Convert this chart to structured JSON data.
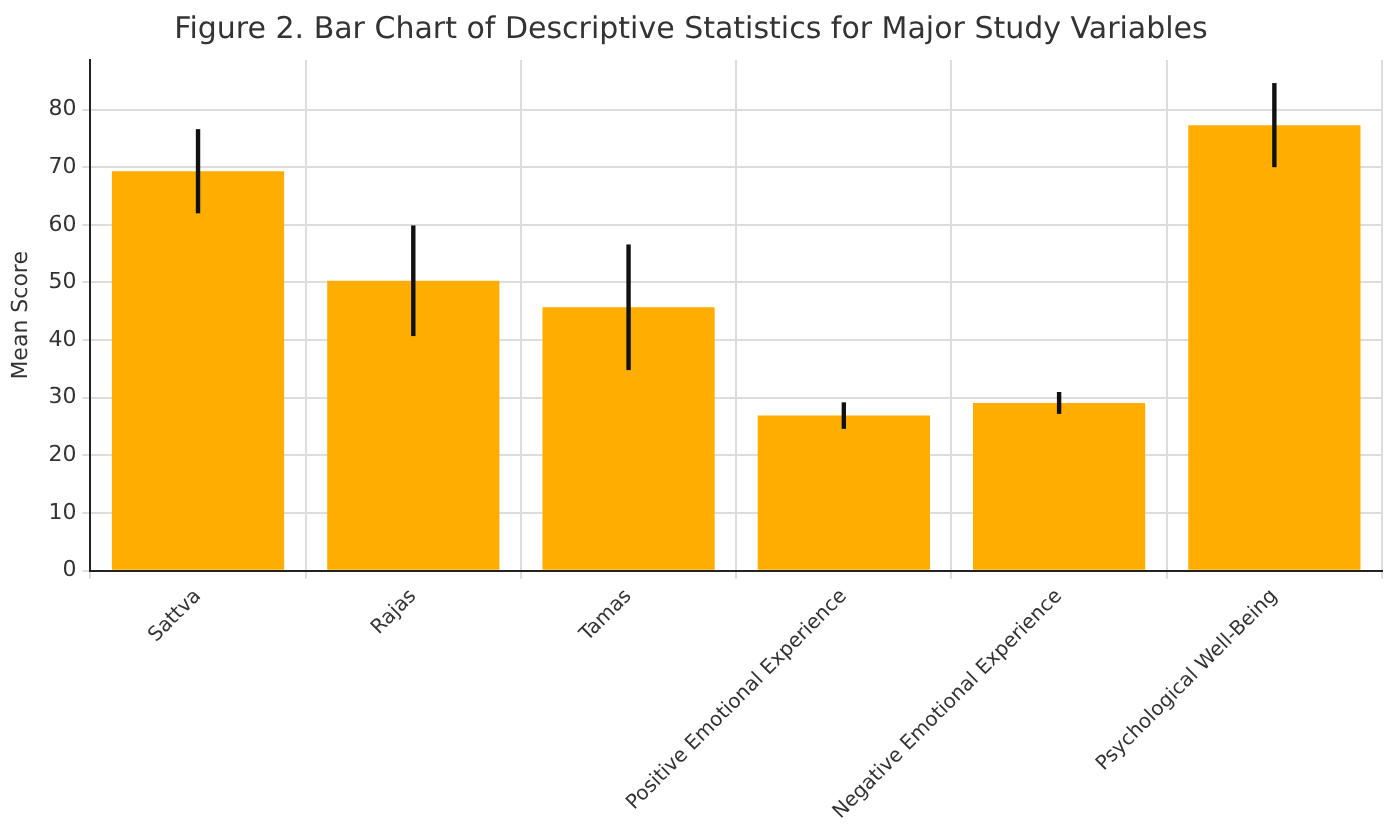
{
  "chart_data": {
    "type": "bar",
    "title": "Figure 2. Bar Chart of Descriptive Statistics for Major Study Variables",
    "ylabel": "Mean Score",
    "categories": [
      "Sattva",
      "Rajas",
      "Tamas",
      "Positive Emotional Experience",
      "Negative Emotional Experience",
      "Psychological Well-Being"
    ],
    "values": [
      69.3,
      50.3,
      45.7,
      26.9,
      29.1,
      77.3
    ],
    "errors": [
      7.3,
      9.6,
      10.9,
      2.3,
      1.9,
      7.3
    ],
    "color": "#ffae00",
    "ylim": [
      0,
      88.6
    ],
    "yticks": [
      0,
      10,
      20,
      30,
      40,
      50,
      60,
      70,
      80
    ],
    "grid": true
  }
}
